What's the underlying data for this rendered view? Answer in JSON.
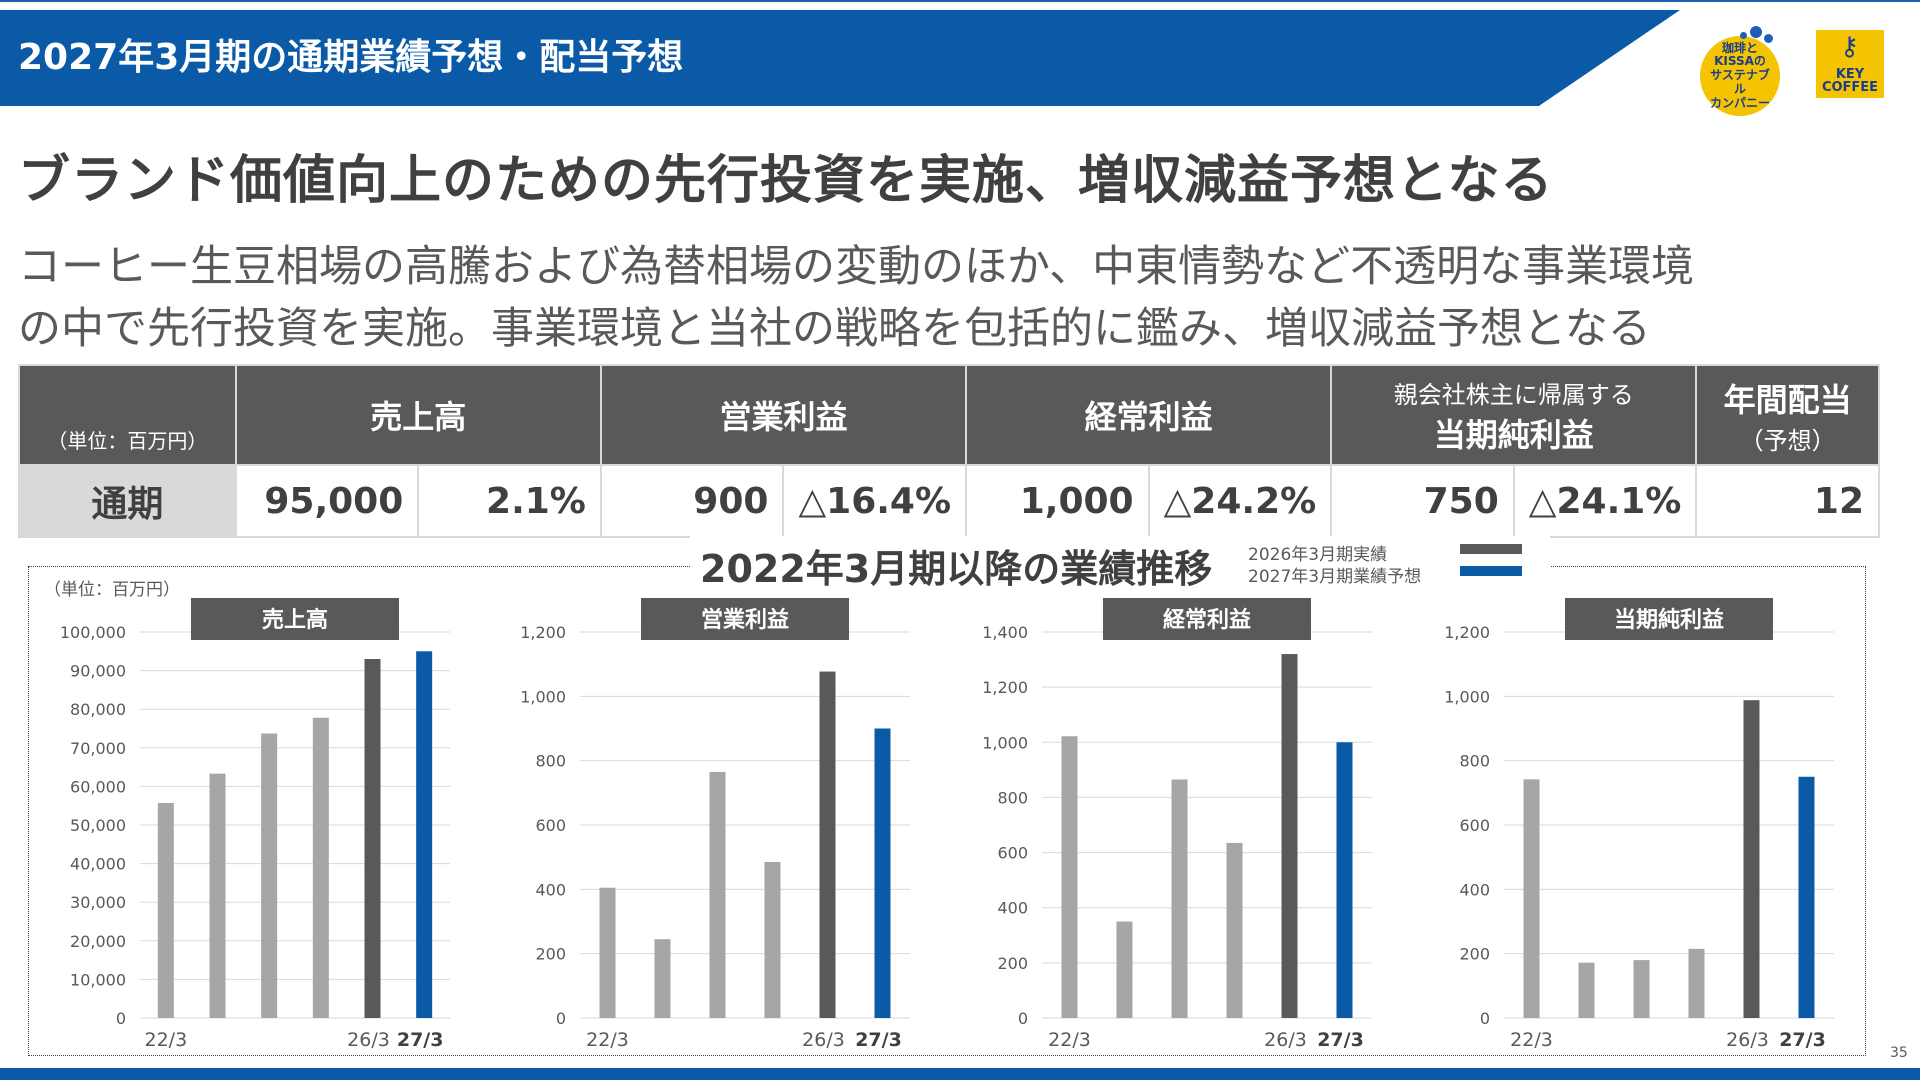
{
  "header": {
    "title": "2027年3月期の通期業績予想・配当予想"
  },
  "logos": {
    "kissa": "珈琲とKISSAのサステナブルカンパニー",
    "key_coffee": "KEY COFFEE"
  },
  "headline": "ブランド価値向上のための先行投資を実施、増収減益予想となる",
  "description": {
    "line1": "コーヒー生豆相場の高騰および為替相場の変動のほか、中東情勢など不透明な事業環境",
    "line2": "の中で先行投資を実施。事業環境と当社の戦略を包括的に鑑み、増収減益予想となる"
  },
  "table": {
    "unit": "（単位：百万円）",
    "headers": {
      "sales": "売上高",
      "operating": "営業利益",
      "ordinary": "経常利益",
      "net_top": "親会社株主に帰属する",
      "net": "当期純利益",
      "dividend": "年間配当",
      "dividend_sub": "（予想）"
    },
    "row": {
      "label": "通期",
      "sales": "95,000",
      "sales_pct": "2.1%",
      "operating": "900",
      "operating_pct": "△16.4%",
      "ordinary": "1,000",
      "ordinary_pct": "△24.2%",
      "net": "750",
      "net_pct": "△24.1%",
      "dividend": "12"
    }
  },
  "charts_section": {
    "title": "2022年3月期以降の業績推移",
    "unit": "（単位：百万円）",
    "legend": [
      {
        "label": "2026年3月期実績",
        "color": "#595959"
      },
      {
        "label": "2027年3月期業績予想",
        "color": "#0b5aa7"
      }
    ]
  },
  "chart_data": [
    {
      "type": "bar",
      "title": "売上高",
      "categories": [
        "22/3",
        "",
        "",
        "",
        "26/3",
        "27/3"
      ],
      "values": [
        55700,
        63300,
        73700,
        77800,
        93000,
        95000
      ],
      "ylim": [
        0,
        100000
      ],
      "yticks": [
        "0",
        "10,000",
        "20,000",
        "30,000",
        "40,000",
        "50,000",
        "60,000",
        "70,000",
        "80,000",
        "90,000",
        "100,000"
      ]
    },
    {
      "type": "bar",
      "title": "営業利益",
      "categories": [
        "22/3",
        "",
        "",
        "",
        "26/3",
        "27/3"
      ],
      "values": [
        405,
        245,
        765,
        485,
        1077,
        900
      ],
      "ylim": [
        0,
        1200
      ],
      "yticks": [
        "0",
        "200",
        "400",
        "600",
        "800",
        "1,000",
        "1,200"
      ]
    },
    {
      "type": "bar",
      "title": "経常利益",
      "categories": [
        "22/3",
        "",
        "",
        "",
        "26/3",
        "27/3"
      ],
      "values": [
        1022,
        350,
        865,
        635,
        1320,
        1000
      ],
      "ylim": [
        0,
        1400
      ],
      "yticks": [
        "0",
        "200",
        "400",
        "600",
        "800",
        "1,000",
        "1,200",
        "1,400"
      ]
    },
    {
      "type": "bar",
      "title": "当期純利益",
      "categories": [
        "22/3",
        "",
        "",
        "",
        "26/3",
        "27/3"
      ],
      "values": [
        742,
        172,
        180,
        215,
        988,
        750
      ],
      "ylim": [
        0,
        1200
      ],
      "yticks": [
        "0",
        "200",
        "400",
        "600",
        "800",
        "1,000",
        "1,200"
      ]
    }
  ],
  "colors": {
    "past": "#a6a6a6",
    "actual": "#595959",
    "forecast": "#0b5aa7",
    "header": "#0b5aa7"
  },
  "page_number": "35"
}
